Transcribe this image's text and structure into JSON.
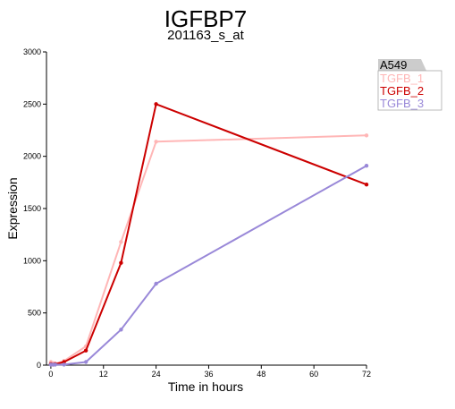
{
  "chart_data": {
    "type": "line",
    "title": "IGFBP7",
    "subtitle": "201163_s_at",
    "xlabel": "Time in hours",
    "ylabel": "Expression",
    "xlim": [
      -1,
      72
    ],
    "ylim": [
      0,
      3000
    ],
    "x_ticks": [
      0,
      12,
      24,
      36,
      48,
      60,
      72
    ],
    "y_ticks": [
      0,
      500,
      1000,
      1500,
      2000,
      2500,
      3000
    ],
    "grid": false,
    "legend_position": "top-right",
    "legend_title": "A549",
    "series": [
      {
        "name": "TGFB_1",
        "color": "#ffb6b6",
        "points": [
          [
            0,
            30
          ],
          [
            0.5,
            20
          ],
          [
            1,
            15
          ],
          [
            3,
            40
          ],
          [
            8,
            180
          ],
          [
            16,
            1180
          ],
          [
            24,
            2140
          ],
          [
            72,
            2200
          ]
        ]
      },
      {
        "name": "TGFB_2",
        "color": "#cc0000",
        "points": [
          [
            0,
            10
          ],
          [
            0.5,
            5
          ],
          [
            1,
            10
          ],
          [
            3,
            30
          ],
          [
            8,
            140
          ],
          [
            16,
            980
          ],
          [
            24,
            2500
          ],
          [
            72,
            1730
          ]
        ]
      },
      {
        "name": "TGFB_3",
        "color": "#9988d8",
        "points": [
          [
            0,
            5
          ],
          [
            0.5,
            5
          ],
          [
            1,
            5
          ],
          [
            3,
            5
          ],
          [
            8,
            30
          ],
          [
            16,
            340
          ],
          [
            24,
            780
          ],
          [
            72,
            1910
          ]
        ]
      }
    ]
  }
}
